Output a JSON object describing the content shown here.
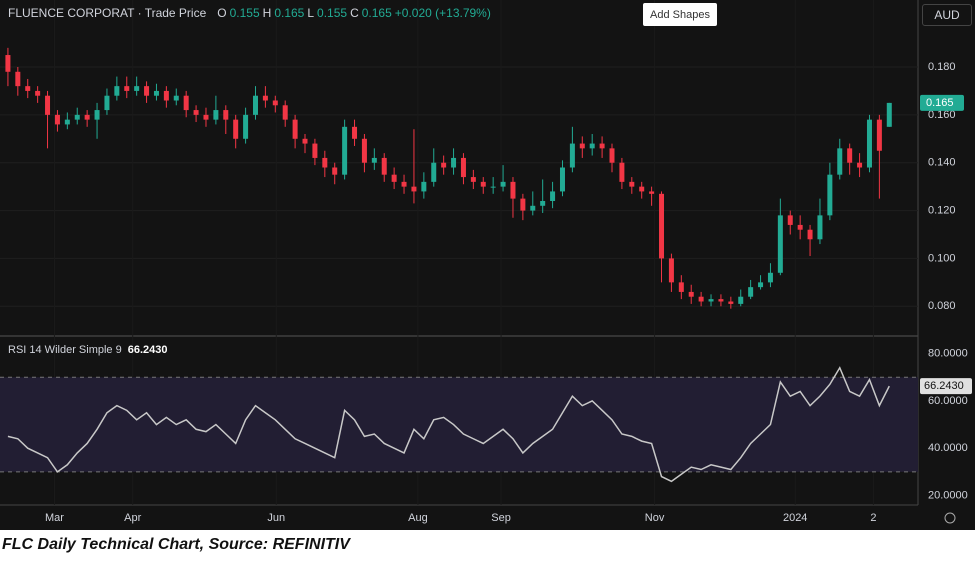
{
  "chart_data": {
    "type": "candlestick",
    "header": {
      "title": "FLUENCE CORPORAT · Trade Price",
      "open_key": "O",
      "open": "0.155",
      "high_key": "H",
      "high": "0.165",
      "low_key": "L",
      "low": "0.155",
      "close_key": "C",
      "close": "0.165",
      "change": "+0.020 (+13.79%)"
    },
    "currency": "AUD",
    "button": "Add Shapes",
    "up_color": "#22ab94",
    "down_color": "#f23645",
    "open": [
      0.185,
      0.178,
      0.172,
      0.17,
      0.168,
      0.16,
      0.156,
      0.158,
      0.16,
      0.158,
      0.162,
      0.168,
      0.172,
      0.17,
      0.172,
      0.168,
      0.17,
      0.166,
      0.168,
      0.162,
      0.16,
      0.158,
      0.162,
      0.158,
      0.15,
      0.16,
      0.168,
      0.166,
      0.164,
      0.158,
      0.15,
      0.148,
      0.142,
      0.138,
      0.135,
      0.155,
      0.15,
      0.14,
      0.142,
      0.135,
      0.132,
      0.13,
      0.128,
      0.132,
      0.14,
      0.138,
      0.142,
      0.134,
      0.132,
      0.13,
      0.13,
      0.132,
      0.125,
      0.12,
      0.122,
      0.124,
      0.128,
      0.138,
      0.148,
      0.146,
      0.148,
      0.146,
      0.14,
      0.132,
      0.13,
      0.128,
      0.127,
      0.1,
      0.09,
      0.086,
      0.084,
      0.082,
      0.083,
      0.082,
      0.081,
      0.084,
      0.088,
      0.09,
      0.094,
      0.118,
      0.114,
      0.112,
      0.108,
      0.118,
      0.135,
      0.146,
      0.14,
      0.138,
      0.158,
      0.155
    ],
    "high": [
      0.188,
      0.18,
      0.175,
      0.172,
      0.17,
      0.162,
      0.161,
      0.163,
      0.162,
      0.165,
      0.171,
      0.176,
      0.176,
      0.176,
      0.174,
      0.173,
      0.172,
      0.171,
      0.17,
      0.164,
      0.163,
      0.168,
      0.164,
      0.16,
      0.163,
      0.172,
      0.172,
      0.168,
      0.166,
      0.16,
      0.152,
      0.15,
      0.145,
      0.14,
      0.158,
      0.158,
      0.152,
      0.146,
      0.144,
      0.138,
      0.135,
      0.154,
      0.136,
      0.146,
      0.143,
      0.146,
      0.144,
      0.137,
      0.134,
      0.134,
      0.139,
      0.134,
      0.127,
      0.128,
      0.133,
      0.132,
      0.141,
      0.155,
      0.151,
      0.152,
      0.151,
      0.148,
      0.142,
      0.134,
      0.132,
      0.13,
      0.128,
      0.102,
      0.093,
      0.089,
      0.086,
      0.085,
      0.085,
      0.084,
      0.087,
      0.091,
      0.093,
      0.098,
      0.125,
      0.12,
      0.118,
      0.114,
      0.125,
      0.14,
      0.15,
      0.148,
      0.144,
      0.16,
      0.16,
      0.165
    ],
    "low": [
      0.172,
      0.168,
      0.167,
      0.165,
      0.146,
      0.153,
      0.154,
      0.156,
      0.155,
      0.15,
      0.16,
      0.166,
      0.167,
      0.168,
      0.165,
      0.166,
      0.163,
      0.164,
      0.159,
      0.157,
      0.155,
      0.156,
      0.152,
      0.146,
      0.148,
      0.158,
      0.163,
      0.161,
      0.155,
      0.146,
      0.144,
      0.139,
      0.134,
      0.131,
      0.133,
      0.147,
      0.136,
      0.137,
      0.132,
      0.129,
      0.127,
      0.123,
      0.125,
      0.13,
      0.135,
      0.135,
      0.131,
      0.129,
      0.127,
      0.127,
      0.128,
      0.117,
      0.116,
      0.118,
      0.119,
      0.121,
      0.126,
      0.136,
      0.142,
      0.143,
      0.142,
      0.136,
      0.129,
      0.127,
      0.125,
      0.122,
      0.09,
      0.086,
      0.083,
      0.081,
      0.08,
      0.08,
      0.08,
      0.079,
      0.08,
      0.083,
      0.087,
      0.088,
      0.093,
      0.11,
      0.108,
      0.101,
      0.106,
      0.116,
      0.133,
      0.135,
      0.134,
      0.136,
      0.125,
      0.155
    ],
    "close": [
      0.178,
      0.172,
      0.17,
      0.168,
      0.16,
      0.156,
      0.158,
      0.16,
      0.158,
      0.162,
      0.168,
      0.172,
      0.17,
      0.172,
      0.168,
      0.17,
      0.166,
      0.168,
      0.162,
      0.16,
      0.158,
      0.162,
      0.158,
      0.15,
      0.16,
      0.168,
      0.166,
      0.164,
      0.158,
      0.15,
      0.148,
      0.142,
      0.138,
      0.135,
      0.155,
      0.15,
      0.14,
      0.142,
      0.135,
      0.132,
      0.13,
      0.128,
      0.132,
      0.14,
      0.138,
      0.142,
      0.134,
      0.132,
      0.13,
      0.13,
      0.132,
      0.125,
      0.12,
      0.122,
      0.124,
      0.128,
      0.138,
      0.148,
      0.146,
      0.148,
      0.146,
      0.14,
      0.132,
      0.13,
      0.128,
      0.127,
      0.1,
      0.09,
      0.086,
      0.084,
      0.082,
      0.083,
      0.082,
      0.081,
      0.084,
      0.088,
      0.09,
      0.094,
      0.118,
      0.114,
      0.112,
      0.108,
      0.118,
      0.135,
      0.146,
      0.14,
      0.138,
      0.158,
      0.145,
      0.165
    ],
    "xlim": [
      -0.8,
      91.9
    ],
    "xticks": [
      {
        "value": 4.7,
        "label": "Mar"
      },
      {
        "value": 12.6,
        "label": "Apr"
      },
      {
        "value": 27.1,
        "label": "Jun"
      },
      {
        "value": 41.4,
        "label": "Aug"
      },
      {
        "value": 49.8,
        "label": "Sep"
      },
      {
        "value": 65.3,
        "label": "Nov"
      },
      {
        "value": 79.5,
        "label": "2024"
      },
      {
        "value": 87.4,
        "label": "2"
      }
    ],
    "ylim": [
      0.068,
      0.208
    ],
    "yticks": [
      {
        "value": 0.08,
        "label": "0.080"
      },
      {
        "value": 0.1,
        "label": "0.100"
      },
      {
        "value": 0.12,
        "label": "0.120"
      },
      {
        "value": 0.14,
        "label": "0.140"
      },
      {
        "value": 0.16,
        "label": "0.160"
      },
      {
        "value": 0.18,
        "label": "0.180"
      }
    ],
    "grid": true,
    "indicator": {
      "type": "line",
      "name": "RSI 14 Wilder Simple 9",
      "readout": "66.2430",
      "color": "#c8c8c8",
      "band_color": "#221e33",
      "values": [
        45,
        44,
        40,
        38,
        36,
        30,
        33,
        38,
        42,
        48,
        55,
        58,
        56,
        52,
        55,
        50,
        53,
        50,
        52,
        48,
        47,
        50,
        46,
        42,
        52,
        58,
        55,
        52,
        48,
        44,
        42,
        40,
        38,
        36,
        56,
        52,
        45,
        46,
        42,
        40,
        38,
        48,
        44,
        52,
        53,
        50,
        46,
        44,
        42,
        45,
        48,
        44,
        38,
        42,
        45,
        48,
        55,
        62,
        58,
        60,
        56,
        52,
        46,
        45,
        43,
        42,
        28,
        26,
        29,
        32,
        31,
        33,
        32,
        31,
        36,
        42,
        46,
        50,
        68,
        62,
        64,
        58,
        62,
        67,
        74,
        64,
        62,
        69,
        58,
        66.243
      ],
      "ylim": [
        16,
        87
      ],
      "yticks": [
        {
          "value": 20,
          "label": "20.0000"
        },
        {
          "value": 40,
          "label": "40.0000"
        },
        {
          "value": 60,
          "label": "60.0000"
        },
        {
          "value": 80,
          "label": "80.0000"
        }
      ],
      "bands": [
        30,
        70
      ]
    },
    "caption": "FLC Daily Technical Chart, Source: REFINITIV"
  }
}
